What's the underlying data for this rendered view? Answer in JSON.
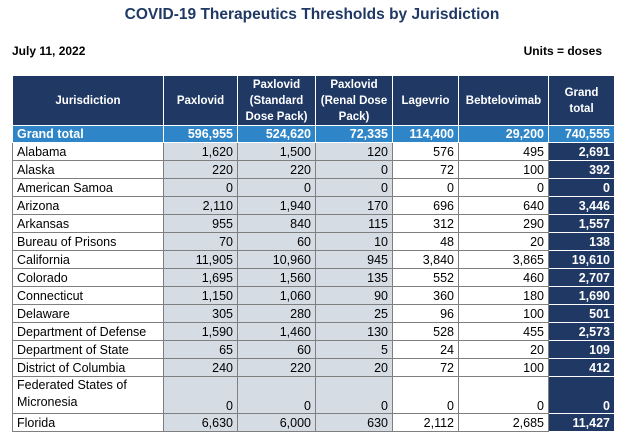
{
  "title": "COVID-19 Therapeutics Thresholds by Jurisdiction",
  "date": "July 11, 2022",
  "units": "Units = doses",
  "headers": [
    "Jurisdiction",
    "Paxlovid",
    "Paxlovid (Standard Dose Pack)",
    "Paxlovid (Renal Dose Pack)",
    "Lagevrio",
    "Bebtelovimab",
    "Grand total"
  ],
  "grand_total": [
    "Grand total",
    "596,955",
    "524,620",
    "72,335",
    "114,400",
    "29,200",
    "740,555"
  ],
  "rows": [
    [
      "Alabama",
      "1,620",
      "1,500",
      "120",
      "576",
      "495",
      "2,691"
    ],
    [
      "Alaska",
      "220",
      "220",
      "0",
      "72",
      "100",
      "392"
    ],
    [
      "American Samoa",
      "0",
      "0",
      "0",
      "0",
      "0",
      "0"
    ],
    [
      "Arizona",
      "2,110",
      "1,940",
      "170",
      "696",
      "640",
      "3,446"
    ],
    [
      "Arkansas",
      "955",
      "840",
      "115",
      "312",
      "290",
      "1,557"
    ],
    [
      "Bureau of Prisons",
      "70",
      "60",
      "10",
      "48",
      "20",
      "138"
    ],
    [
      "California",
      "11,905",
      "10,960",
      "945",
      "3,840",
      "3,865",
      "19,610"
    ],
    [
      "Colorado",
      "1,695",
      "1,560",
      "135",
      "552",
      "460",
      "2,707"
    ],
    [
      "Connecticut",
      "1,150",
      "1,060",
      "90",
      "360",
      "180",
      "1,690"
    ],
    [
      "Delaware",
      "305",
      "280",
      "25",
      "96",
      "100",
      "501"
    ],
    [
      "Department of Defense",
      "1,590",
      "1,460",
      "130",
      "528",
      "455",
      "2,573"
    ],
    [
      "Department of State",
      "65",
      "60",
      "5",
      "24",
      "20",
      "109"
    ],
    [
      "District of Columbia",
      "240",
      "220",
      "20",
      "72",
      "100",
      "412"
    ],
    [
      "Federated States of Micronesia",
      "0",
      "0",
      "0",
      "0",
      "0",
      "0"
    ],
    [
      "Florida",
      "6,630",
      "6,000",
      "630",
      "2,112",
      "2,685",
      "11,427"
    ]
  ]
}
